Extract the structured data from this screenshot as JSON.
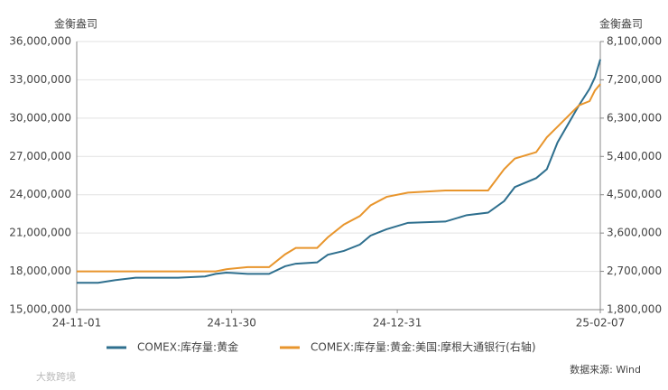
{
  "chart_data": {
    "type": "line",
    "y_label": "金衡盎司",
    "y2_label": "金衡盎司",
    "x": [
      "24-11-01",
      "24-11-05",
      "24-11-08",
      "24-11-12",
      "24-11-20",
      "24-11-25",
      "24-11-27",
      "24-11-29",
      "24-12-03",
      "24-12-07",
      "24-12-10",
      "24-12-12",
      "24-12-16",
      "24-12-18",
      "24-12-21",
      "24-12-24",
      "24-12-26",
      "24-12-29",
      "25-01-02",
      "25-01-09",
      "25-01-13",
      "25-01-17",
      "25-01-20",
      "25-01-22",
      "25-01-26",
      "25-01-28",
      "25-01-30",
      "25-02-03",
      "25-02-05",
      "25-02-06",
      "25-02-07"
    ],
    "series": [
      {
        "name": "COMEX:库存量:黄金",
        "color": "#2e6f8e",
        "values": [
          17100000,
          17100000,
          17300000,
          17500000,
          17500000,
          17600000,
          17800000,
          17900000,
          17800000,
          17800000,
          18400000,
          18600000,
          18700000,
          19300000,
          19600000,
          20100000,
          20800000,
          21300000,
          21800000,
          21900000,
          22400000,
          22600000,
          23500000,
          24600000,
          25300000,
          26000000,
          28100000,
          31000000,
          32300000,
          33200000,
          34600000
        ]
      },
      {
        "name": "COMEX:库存量:黄金:美国:摩根大通银行(右轴)",
        "color": "#e8952c",
        "axis": "y2",
        "values": [
          2700000,
          2700000,
          2700000,
          2700000,
          2700000,
          2700000,
          2700000,
          2750000,
          2800000,
          2800000,
          3100000,
          3250000,
          3250000,
          3500000,
          3800000,
          4000000,
          4250000,
          4450000,
          4550000,
          4600000,
          4600000,
          4600000,
          5100000,
          5350000,
          5500000,
          5850000,
          6100000,
          6600000,
          6700000,
          6950000,
          7100000
        ]
      }
    ],
    "xlim": [
      "24-11-01",
      "25-02-07"
    ],
    "xticks": [
      "24-11-01",
      "24-11-30",
      "24-12-31",
      "25-02-07"
    ],
    "ylim": [
      15000000,
      36000000
    ],
    "yticks": [
      {
        "value": 15000000,
        "label": "15,000,000"
      },
      {
        "value": 18000000,
        "label": "18,000,000"
      },
      {
        "value": 21000000,
        "label": "21,000,000"
      },
      {
        "value": 24000000,
        "label": "24,000,000"
      },
      {
        "value": 27000000,
        "label": "27,000,000"
      },
      {
        "value": 30000000,
        "label": "30,000,000"
      },
      {
        "value": 33000000,
        "label": "33,000,000"
      },
      {
        "value": 36000000,
        "label": "36,000,000"
      }
    ],
    "y2lim": [
      1800000,
      8100000
    ],
    "y2ticks": [
      {
        "value": 1800000,
        "label": "1,800,000"
      },
      {
        "value": 2700000,
        "label": "2,700,000"
      },
      {
        "value": 3600000,
        "label": "3,600,000"
      },
      {
        "value": 4500000,
        "label": "4,500,000"
      },
      {
        "value": 5400000,
        "label": "5,400,000"
      },
      {
        "value": 6300000,
        "label": "6,300,000"
      },
      {
        "value": 7200000,
        "label": "7,200,000"
      },
      {
        "value": 8100000,
        "label": "8,100,000"
      }
    ],
    "grid": true,
    "source": "数据来源: Wind",
    "watermark": "大数跨境"
  }
}
